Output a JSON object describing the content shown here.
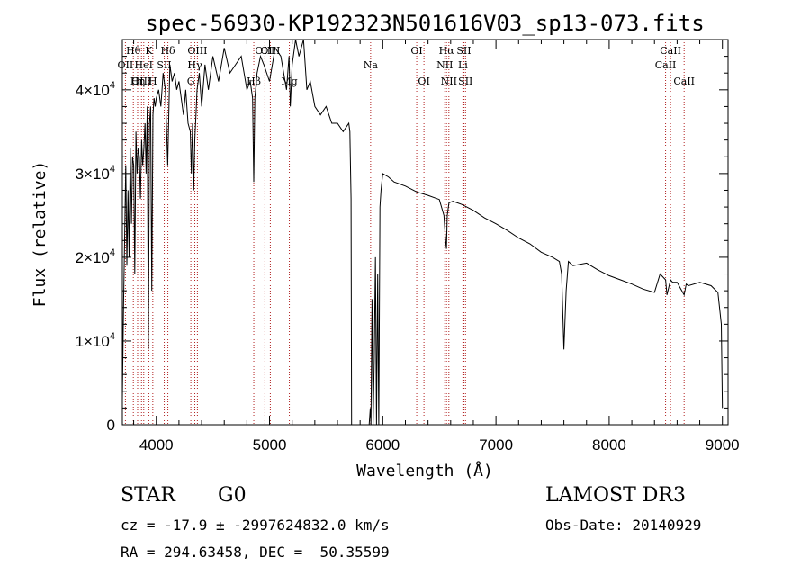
{
  "chart_data": {
    "type": "line",
    "title": "spec-56930-KP192323N501616V03_sp13-073.fits",
    "xlabel": "Wavelength (Å)",
    "ylabel": "Flux (relative)",
    "xlim": [
      3700,
      9050
    ],
    "ylim": [
      0,
      46000
    ],
    "x_ticks": [
      {
        "value": 4000,
        "label": "4000"
      },
      {
        "value": 5000,
        "label": "5000"
      },
      {
        "value": 6000,
        "label": "6000"
      },
      {
        "value": 7000,
        "label": "7000"
      },
      {
        "value": 8000,
        "label": "8000"
      },
      {
        "value": 9000,
        "label": "9000"
      }
    ],
    "y_ticks": [
      {
        "value": 0,
        "label": "0",
        "exp": ""
      },
      {
        "value": 10000,
        "label": "1×10",
        "exp": "4"
      },
      {
        "value": 20000,
        "label": "2×10",
        "exp": "4"
      },
      {
        "value": 30000,
        "label": "3×10",
        "exp": "4"
      },
      {
        "value": 40000,
        "label": "4×10",
        "exp": "4"
      }
    ],
    "series": [
      {
        "name": "flux",
        "x": [
          3700,
          3710,
          3720,
          3730,
          3740,
          3750,
          3760,
          3770,
          3780,
          3790,
          3800,
          3810,
          3820,
          3830,
          3840,
          3850,
          3860,
          3870,
          3880,
          3890,
          3900,
          3910,
          3920,
          3930,
          3940,
          3950,
          3960,
          3970,
          3980,
          3990,
          4000,
          4020,
          4040,
          4060,
          4080,
          4101,
          4120,
          4140,
          4160,
          4180,
          4200,
          4220,
          4240,
          4260,
          4280,
          4300,
          4310,
          4320,
          4330,
          4340,
          4350,
          4360,
          4380,
          4400,
          4430,
          4460,
          4500,
          4550,
          4600,
          4650,
          4700,
          4750,
          4800,
          4830,
          4850,
          4861,
          4870,
          4890,
          4920,
          4950,
          5000,
          5050,
          5100,
          5150,
          5172,
          5183,
          5200,
          5230,
          5260,
          5300,
          5330,
          5360,
          5400,
          5450,
          5500,
          5550,
          5600,
          5650,
          5700,
          5710,
          5720,
          5725,
          5730,
          5740,
          5760,
          5800,
          5860,
          5880,
          5890,
          5896,
          5905,
          5915,
          5925,
          5935,
          5945,
          5955,
          5965,
          5975,
          5985,
          6000,
          6050,
          6100,
          6200,
          6300,
          6400,
          6500,
          6540,
          6555,
          6563,
          6570,
          6585,
          6620,
          6700,
          6800,
          6900,
          7000,
          7100,
          7200,
          7300,
          7400,
          7500,
          7560,
          7580,
          7600,
          7620,
          7640,
          7680,
          7800,
          7900,
          8000,
          8100,
          8200,
          8300,
          8400,
          8450,
          8498,
          8510,
          8542,
          8560,
          8600,
          8662,
          8680,
          8700,
          8800,
          8900,
          8960,
          8990,
          9000
        ],
        "y": [
          3000,
          14000,
          22000,
          31000,
          19000,
          28000,
          20000,
          33000,
          24000,
          32000,
          31000,
          18000,
          35000,
          30000,
          33000,
          32000,
          27000,
          34000,
          31000,
          33000,
          36000,
          30000,
          38000,
          9000,
          36000,
          38000,
          16000,
          37000,
          39000,
          38000,
          39000,
          40000,
          38000,
          42000,
          40000,
          31000,
          43000,
          41000,
          42000,
          40000,
          41000,
          39000,
          37000,
          40000,
          36000,
          35000,
          30000,
          36000,
          28000,
          34000,
          37000,
          40000,
          42000,
          38000,
          43000,
          40000,
          44000,
          41000,
          45000,
          42000,
          43000,
          44000,
          40000,
          41000,
          39000,
          29000,
          39000,
          42000,
          44000,
          43000,
          41000,
          45000,
          44000,
          40000,
          44000,
          38000,
          43000,
          47000,
          44000,
          48000,
          40000,
          41000,
          38000,
          37000,
          38000,
          36000,
          36000,
          35000,
          36000,
          35000,
          27000,
          0,
          0,
          0,
          0,
          0,
          0,
          0,
          2000,
          0,
          15000,
          0,
          8000,
          20000,
          0,
          18000,
          0,
          26000,
          28000,
          30000,
          29600,
          29000,
          28500,
          27800,
          27400,
          26900,
          25000,
          22000,
          21000,
          25000,
          26500,
          26700,
          26300,
          25600,
          24700,
          24000,
          23200,
          22300,
          21600,
          20600,
          20000,
          19500,
          18000,
          9000,
          16000,
          19500,
          19000,
          19300,
          18500,
          17800,
          17300,
          16800,
          16200,
          15800,
          18000,
          17300,
          15500,
          17300,
          17000,
          17000,
          15500,
          16800,
          16600,
          17000,
          16600,
          15800,
          12000,
          2000
        ]
      }
    ],
    "line_markers": [
      {
        "name": "Hθ",
        "x": 3797,
        "label_row": 0
      },
      {
        "name": "OII",
        "x": 3727,
        "label_row": 1
      },
      {
        "name": "OIII",
        "x": 3869,
        "label_row": 2
      },
      {
        "name": "K",
        "x": 3934,
        "label_row": 0
      },
      {
        "name": "HeI",
        "x": 3889,
        "label_row": 1
      },
      {
        "name": "Hη",
        "x": 3835,
        "label_row": 2
      },
      {
        "name": "SII",
        "x": 4070,
        "label_row": 1
      },
      {
        "name": "H",
        "x": 3969,
        "label_row": 2
      },
      {
        "name": "Hδ",
        "x": 4102,
        "label_row": 0
      },
      {
        "name": "OIII",
        "x": 4363,
        "label_row": 0
      },
      {
        "name": "Hγ",
        "x": 4340,
        "label_row": 1
      },
      {
        "name": "G",
        "x": 4305,
        "label_row": 2
      },
      {
        "name": "OIII",
        "x": 4959,
        "label_row": 0
      },
      {
        "name": "Hβ",
        "x": 4861,
        "label_row": 2
      },
      {
        "name": "OIII",
        "x": 5007,
        "label_row": 0
      },
      {
        "name": "Mg",
        "x": 5175,
        "label_row": 2
      },
      {
        "name": "Na",
        "x": 5893,
        "label_row": 1
      },
      {
        "name": "OI",
        "x": 6300,
        "label_row": 0
      },
      {
        "name": "OI",
        "x": 6364,
        "label_row": 2
      },
      {
        "name": "Hα",
        "x": 6563,
        "label_row": 0
      },
      {
        "name": "NII",
        "x": 6548,
        "label_row": 1
      },
      {
        "name": "NII",
        "x": 6584,
        "label_row": 2
      },
      {
        "name": "SII",
        "x": 6717,
        "label_row": 0
      },
      {
        "name": "Li",
        "x": 6708,
        "label_row": 1
      },
      {
        "name": "SII",
        "x": 6731,
        "label_row": 2
      },
      {
        "name": "CaII",
        "x": 8542,
        "label_row": 0
      },
      {
        "name": "CaII",
        "x": 8498,
        "label_row": 1
      },
      {
        "name": "CaII",
        "x": 8662,
        "label_row": 2
      }
    ]
  },
  "info": {
    "class_label": "STAR",
    "subclass": "G0",
    "survey": "LAMOST DR3",
    "redshift_line": "cz = -17.9 ± -2997624832.0 km/s",
    "obs_date_line": "Obs-Date: 20140929",
    "coords_line": "RA = 294.63458, DEC =  50.35599"
  },
  "colors": {
    "spectrum": "#000000",
    "marker": "#b22222",
    "background": "#ffffff"
  }
}
